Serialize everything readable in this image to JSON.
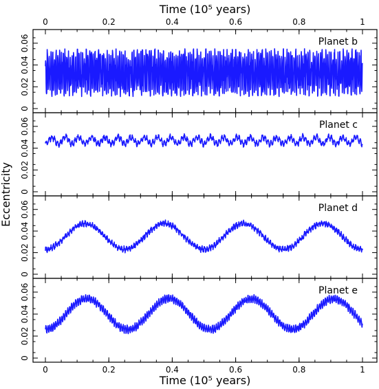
{
  "chart_data": {
    "type": "line",
    "title": "",
    "xlabel_top": "Time (10⁵ years)",
    "xlabel_bottom": "Time (10⁵ years)",
    "ylabel": "Eccentricity",
    "xlim": [
      0,
      1
    ],
    "x_ticks": [
      "0",
      "0.2",
      "0.4",
      "0.6",
      "0.8",
      "1"
    ],
    "ylim": [
      0,
      0.07
    ],
    "y_ticks": [
      "0",
      "0.02",
      "0.04",
      "0.06"
    ],
    "line_color": "#1a1aff",
    "panels": [
      {
        "name": "Planet b",
        "mean": 0.033,
        "osc_amplitude": 0.022,
        "osc_cycles": 180,
        "long_amplitude": 0.0,
        "long_cycles": 0,
        "jitter": 0.004
      },
      {
        "name": "Planet c",
        "mean": 0.047,
        "osc_amplitude": 0.002,
        "osc_cycles": 110,
        "long_amplitude": 0.003,
        "long_cycles": 24,
        "jitter": 0.0015
      },
      {
        "name": "Planet d",
        "mean": 0.035,
        "osc_amplitude": 0.0015,
        "osc_cycles": 130,
        "long_amplitude": 0.012,
        "long_cycles": 4,
        "jitter": 0.0018
      },
      {
        "name": "Planet e",
        "mean": 0.04,
        "osc_amplitude": 0.003,
        "osc_cycles": 160,
        "long_amplitude": 0.014,
        "long_cycles": 3.85,
        "jitter": 0.0012
      }
    ]
  }
}
